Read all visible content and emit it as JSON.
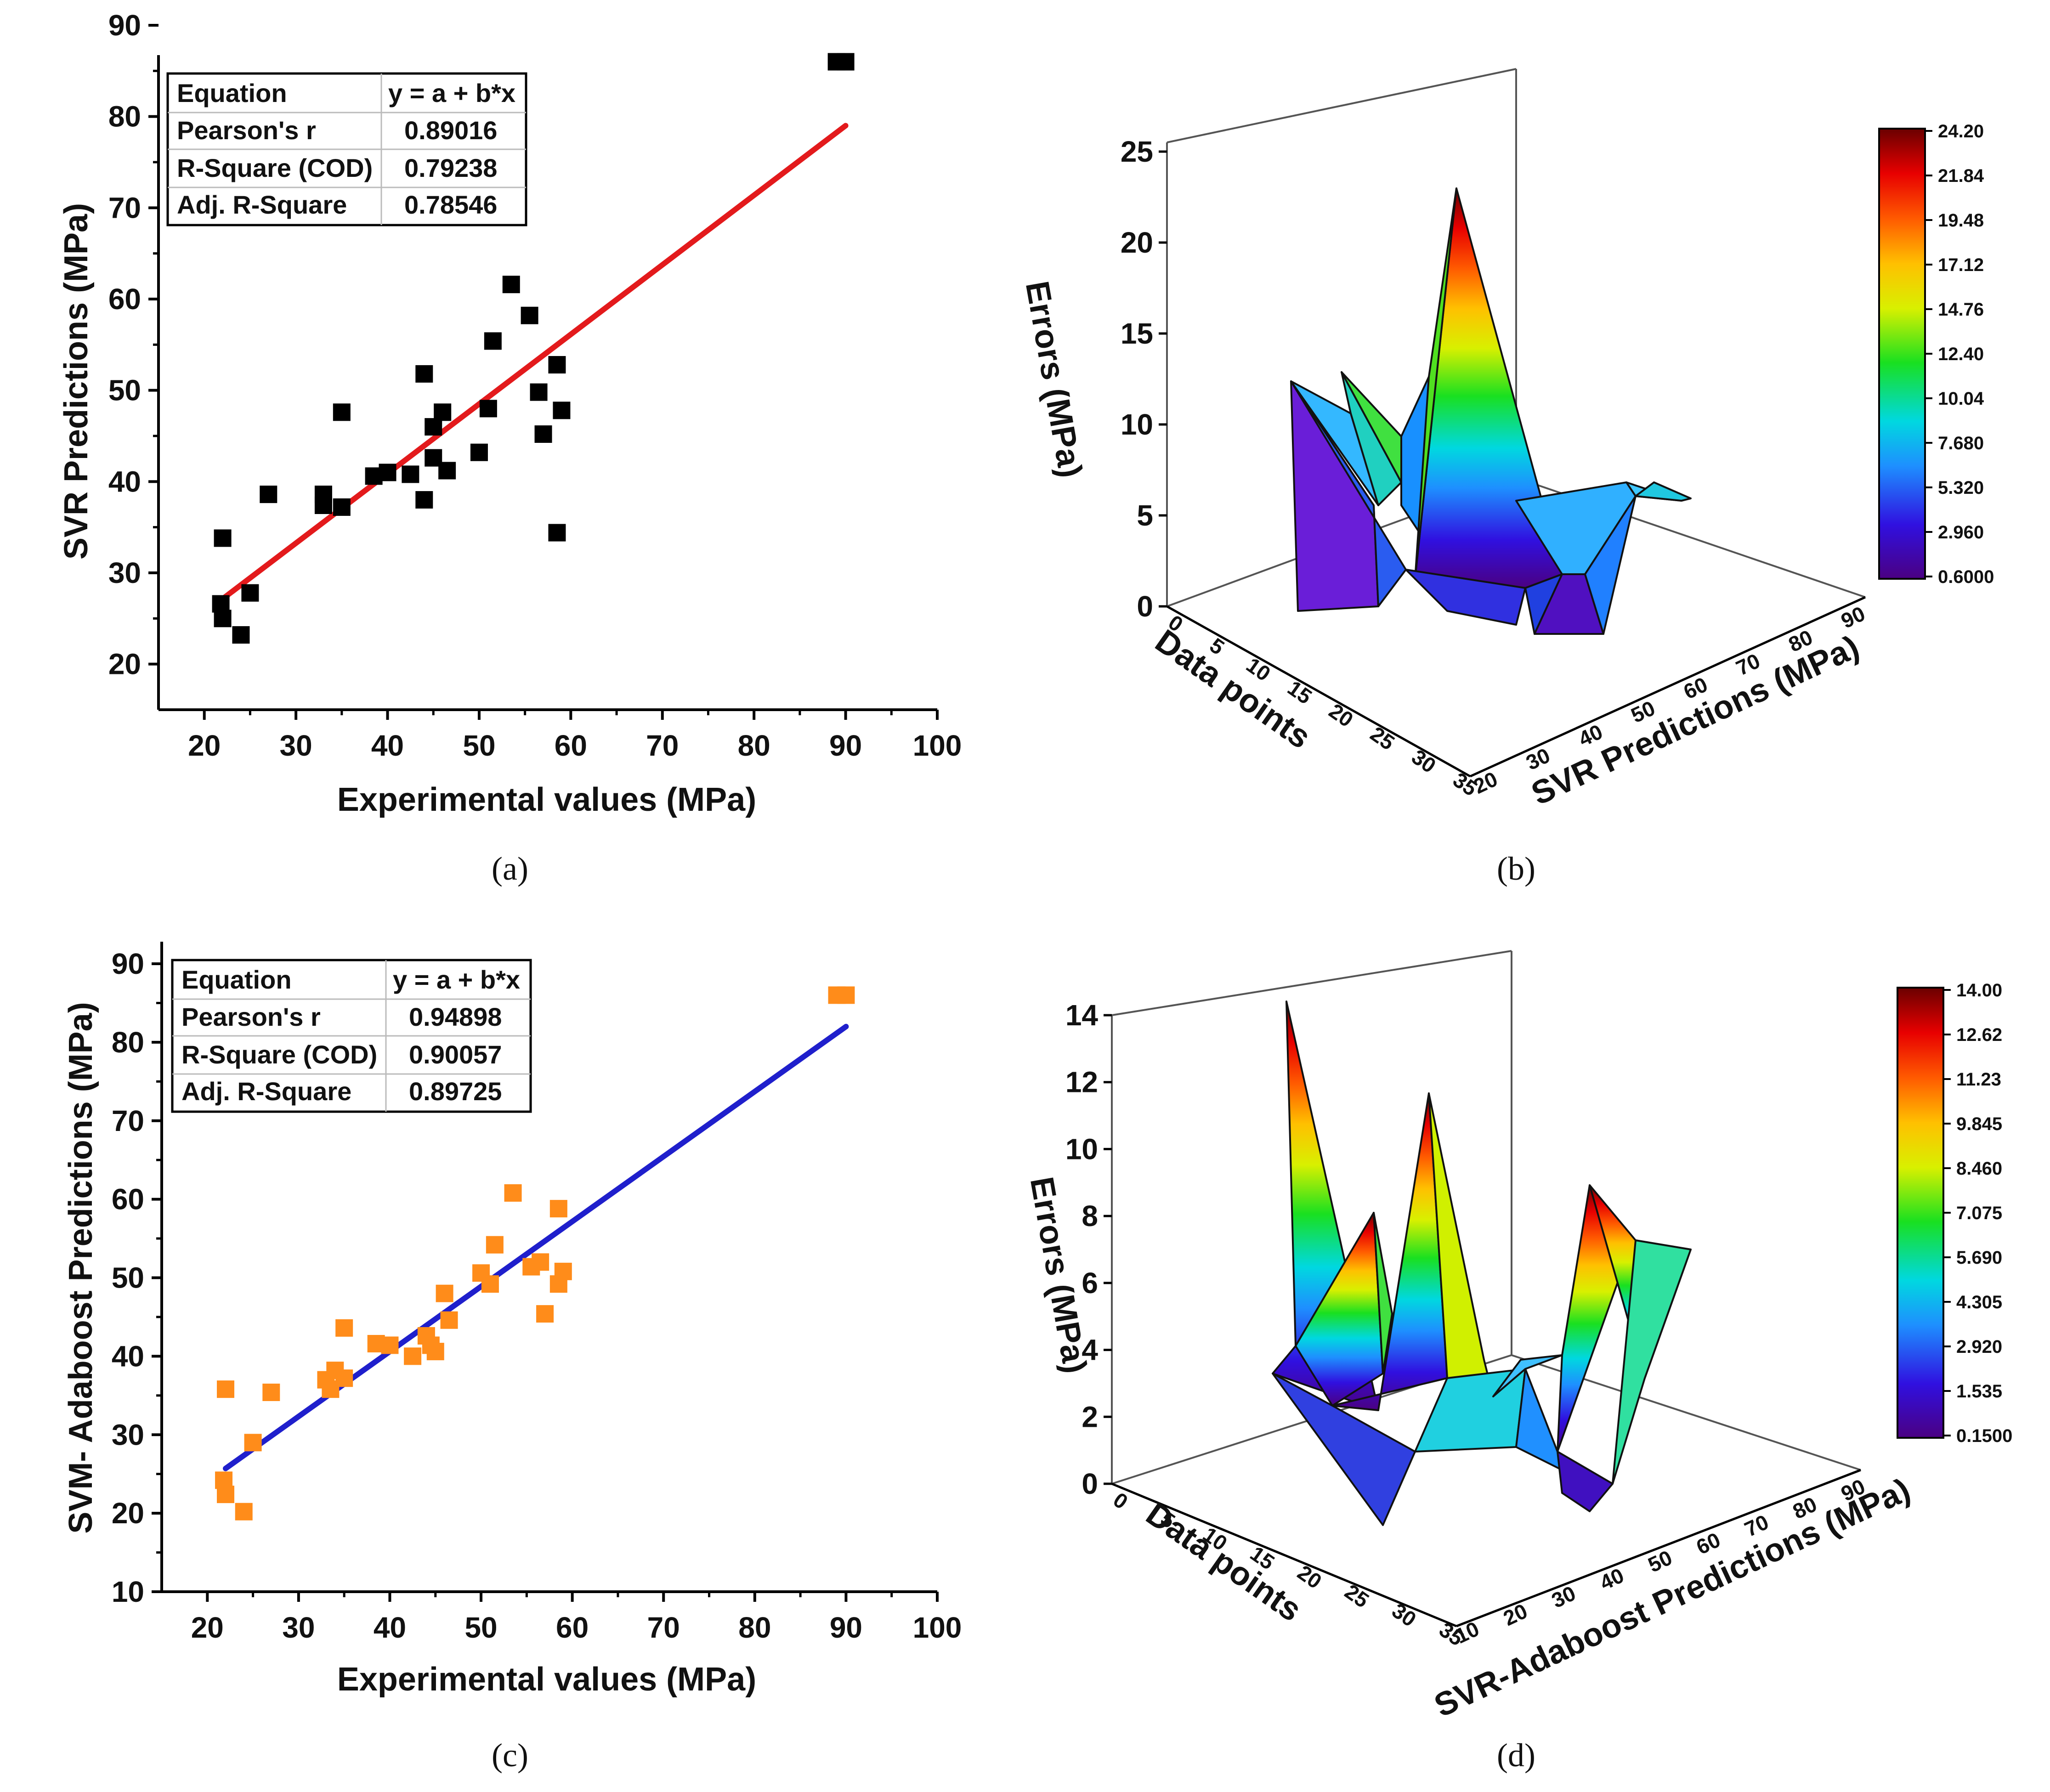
{
  "panel_labels": [
    "(a)",
    "(b)",
    "(c)",
    "(d)"
  ],
  "colors": {
    "fit_a": "#e31a1c",
    "points_a": "#000000",
    "fit_c": "#1f1fcc",
    "points_c": "#ff8c1a"
  },
  "chart_data": [
    {
      "id": "a",
      "type": "scatter",
      "xlabel": "Experimental values (MPa)",
      "ylabel": "SVR Predictions (MPa)",
      "xlim": [
        15,
        100
      ],
      "ylim": [
        15,
        90
      ],
      "xticks": [
        20,
        30,
        40,
        50,
        60,
        70,
        80,
        90,
        100
      ],
      "yticks": [
        20,
        30,
        40,
        50,
        60,
        70,
        80,
        90
      ],
      "points": [
        [
          21.8,
          26.6
        ],
        [
          22,
          25
        ],
        [
          22,
          33.8
        ],
        [
          24,
          23.2
        ],
        [
          25,
          27.8
        ],
        [
          27,
          38.6
        ],
        [
          33,
          38.6
        ],
        [
          33,
          37.4
        ],
        [
          35,
          37.2
        ],
        [
          35,
          47.6
        ],
        [
          38.5,
          40.6
        ],
        [
          40,
          41
        ],
        [
          42.5,
          40.8
        ],
        [
          44,
          51.8
        ],
        [
          44,
          38
        ],
        [
          45,
          46
        ],
        [
          45,
          42.6
        ],
        [
          46,
          47.6
        ],
        [
          46.5,
          41.2
        ],
        [
          50,
          43.2
        ],
        [
          51,
          48
        ],
        [
          51.5,
          55.4
        ],
        [
          53.5,
          61.6
        ],
        [
          55.5,
          58.2
        ],
        [
          56.5,
          49.8
        ],
        [
          57,
          45.2
        ],
        [
          58.5,
          52.8
        ],
        [
          58.5,
          34.4
        ],
        [
          59,
          47.8
        ],
        [
          89,
          86
        ],
        [
          90,
          86
        ]
      ],
      "fit": {
        "x": [
          21.8,
          90
        ],
        "y": [
          27,
          79
        ]
      },
      "stats_table": {
        "headers": [
          "Equation",
          "y = a + b*x"
        ],
        "rows": [
          [
            "Pearson's r",
            "0.89016"
          ],
          [
            "R-Square (COD)",
            "0.79238"
          ],
          [
            "Adj. R-Square",
            "0.78546"
          ]
        ]
      }
    },
    {
      "id": "b",
      "type": "surface3d",
      "zlabel": "Errors (MPa)",
      "xlabel": "Data points",
      "ylabel": "SVR Predictions (MPa)",
      "zticks": [
        0,
        5,
        10,
        15,
        20,
        25
      ],
      "xticks": [
        0,
        5,
        10,
        15,
        20,
        25,
        30,
        35
      ],
      "yticks": [
        20,
        30,
        40,
        50,
        60,
        70,
        80,
        90
      ],
      "colorbar_ticks": [
        "24.20",
        "21.84",
        "19.48",
        "17.12",
        "14.76",
        "12.40",
        "10.04",
        "7.680",
        "5.320",
        "2.960",
        "0.6000"
      ]
    },
    {
      "id": "c",
      "type": "scatter",
      "xlabel": "Experimental values (MPa)",
      "ylabel": "SVM- Adaboost Predictions (MPa)",
      "xlim": [
        15,
        100
      ],
      "ylim": [
        10,
        90
      ],
      "xticks": [
        20,
        30,
        40,
        50,
        60,
        70,
        80,
        90,
        100
      ],
      "yticks": [
        10,
        20,
        30,
        40,
        50,
        60,
        70,
        80,
        90
      ],
      "points": [
        [
          21.8,
          24.2
        ],
        [
          22,
          22.4
        ],
        [
          22,
          35.8
        ],
        [
          24,
          20.2
        ],
        [
          25,
          29
        ],
        [
          27,
          35.4
        ],
        [
          33,
          37
        ],
        [
          33.5,
          35.8
        ],
        [
          34,
          38.2
        ],
        [
          35,
          37.2
        ],
        [
          35,
          43.6
        ],
        [
          38.5,
          41.6
        ],
        [
          40,
          41.4
        ],
        [
          42.5,
          40
        ],
        [
          44,
          42.6
        ],
        [
          44.5,
          41.4
        ],
        [
          45,
          40.6
        ],
        [
          46,
          48
        ],
        [
          46.5,
          44.6
        ],
        [
          50,
          50.6
        ],
        [
          51,
          49.2
        ],
        [
          51.5,
          54.2
        ],
        [
          53.5,
          60.8
        ],
        [
          55.5,
          51.4
        ],
        [
          56.5,
          52
        ],
        [
          57,
          45.4
        ],
        [
          58.5,
          58.8
        ],
        [
          58.5,
          49.2
        ],
        [
          59,
          50.8
        ],
        [
          89,
          86
        ],
        [
          90,
          86
        ]
      ],
      "fit": {
        "x": [
          22,
          90
        ],
        "y": [
          25.7,
          82
        ]
      },
      "stats_table": {
        "headers": [
          "Equation",
          "y = a + b*x"
        ],
        "rows": [
          [
            "Pearson's r",
            "0.94898"
          ],
          [
            "R-Square (COD)",
            "0.90057"
          ],
          [
            "Adj. R-Square",
            "0.89725"
          ]
        ]
      }
    },
    {
      "id": "d",
      "type": "surface3d",
      "zlabel": "Errors (MPa)",
      "xlabel": "Data points",
      "ylabel": "SVR-Adaboost Predictions (MPa)",
      "zticks": [
        0,
        2,
        4,
        6,
        8,
        10,
        12,
        14
      ],
      "xticks": [
        0,
        5,
        10,
        15,
        20,
        25,
        30,
        35
      ],
      "yticks": [
        10,
        20,
        30,
        40,
        50,
        60,
        70,
        80,
        90
      ],
      "colorbar_ticks": [
        "14.00",
        "12.62",
        "11.23",
        "9.845",
        "8.460",
        "7.075",
        "5.690",
        "4.305",
        "2.920",
        "1.535",
        "0.1500"
      ]
    }
  ]
}
